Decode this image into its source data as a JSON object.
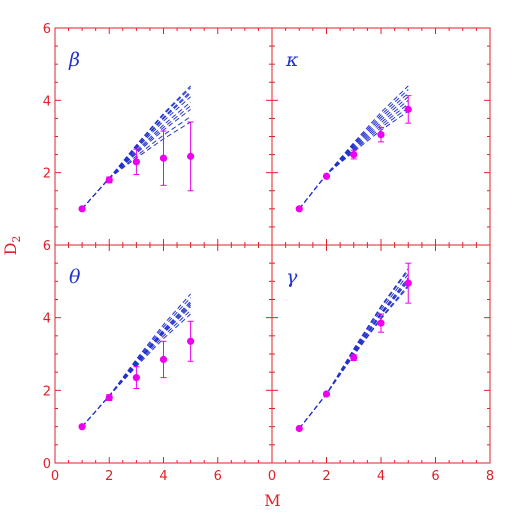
{
  "chart_data": {
    "type": "scatter",
    "xlabel": "M",
    "ylabel": "D",
    "ylabel_subscript": "2",
    "colors": {
      "axes": "#e0202a",
      "curves": "#2233cc",
      "points": "#ee00ee"
    },
    "panels": [
      {
        "label": "β",
        "xlim": [
          0,
          8
        ],
        "ylim": [
          0,
          6
        ],
        "xticks": [],
        "yticks": [
          "2",
          "4",
          "6"
        ],
        "points": {
          "x": [
            1,
            2,
            3,
            4,
            5
          ],
          "y": [
            1.0,
            1.8,
            2.3,
            2.4,
            2.45
          ],
          "err": [
            0,
            0.08,
            0.35,
            0.75,
            0.95
          ]
        },
        "curves_end_y": [
          4.4,
          4.35,
          4.25,
          4.2,
          4.1,
          3.95,
          3.85,
          3.75,
          3.55,
          3.4
        ]
      },
      {
        "label": "κ",
        "xlim": [
          0,
          8
        ],
        "ylim": [
          0,
          6
        ],
        "xticks": [],
        "yticks": [],
        "points": {
          "x": [
            1,
            2,
            3,
            4,
            5
          ],
          "y": [
            1.0,
            1.9,
            2.5,
            3.05,
            3.75
          ],
          "err": [
            0,
            0.04,
            0.12,
            0.2,
            0.38
          ]
        },
        "curves_end_y": [
          4.4,
          4.3,
          4.2,
          4.1,
          4.0,
          3.9,
          3.8,
          3.7
        ]
      },
      {
        "label": "θ",
        "xlim": [
          0,
          8
        ],
        "ylim": [
          0,
          6
        ],
        "xticks": [
          "0",
          "2",
          "4",
          "6"
        ],
        "yticks": [
          "0",
          "2",
          "4",
          "6"
        ],
        "points": {
          "x": [
            1,
            2,
            3,
            4,
            5
          ],
          "y": [
            1.0,
            1.8,
            2.35,
            2.85,
            3.35
          ],
          "err": [
            0,
            0.08,
            0.3,
            0.5,
            0.55
          ]
        },
        "curves_end_y": [
          4.65,
          4.55,
          4.45,
          4.4,
          4.35,
          4.3,
          4.2,
          4.1
        ]
      },
      {
        "label": "γ",
        "xlim": [
          0,
          8
        ],
        "ylim": [
          0,
          6
        ],
        "xticks": [
          "0",
          "2",
          "4",
          "6",
          "8"
        ],
        "yticks": [],
        "points": {
          "x": [
            1,
            2,
            3,
            4,
            5
          ],
          "y": [
            0.95,
            1.9,
            2.9,
            3.85,
            4.95
          ],
          "err": [
            0,
            0.04,
            0.08,
            0.25,
            0.55
          ]
        },
        "curves_end_y": [
          5.35,
          5.3,
          5.2,
          5.1,
          5.05,
          5.0,
          4.9,
          4.85
        ]
      }
    ]
  }
}
